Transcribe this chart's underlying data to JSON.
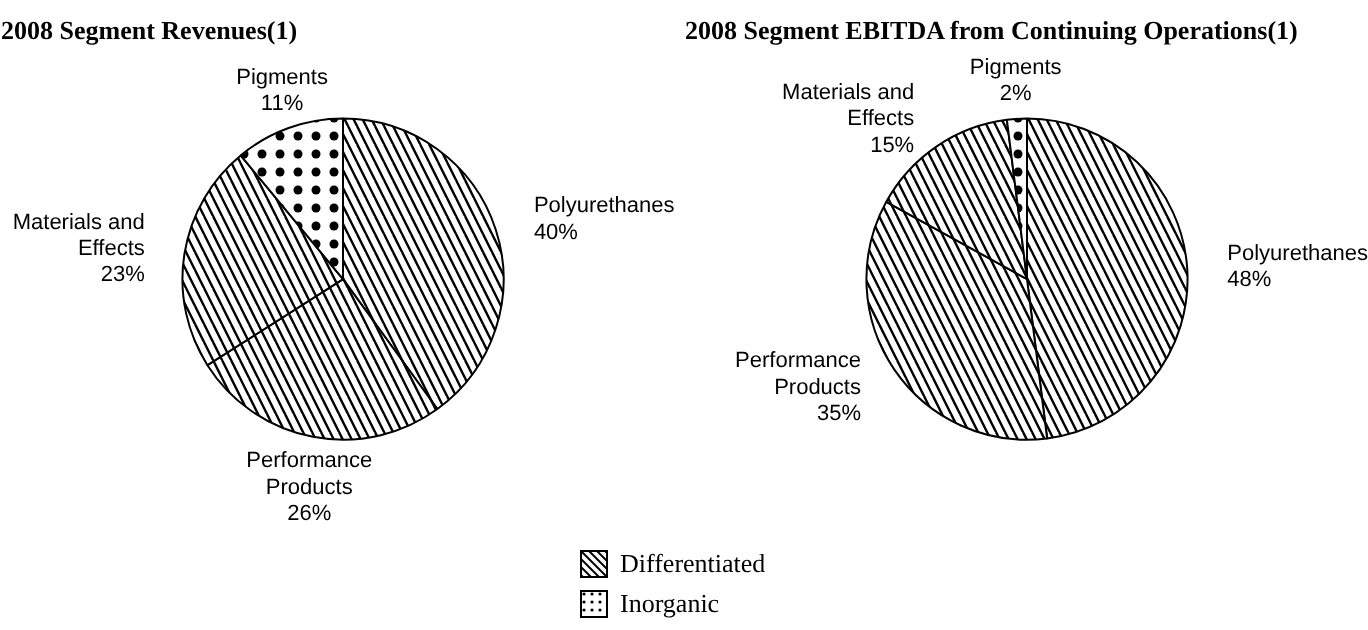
{
  "chart_data": [
    {
      "type": "pie",
      "title": "2008 Segment Revenues(1)",
      "categories": [
        "Polyurethanes",
        "Performance\nProducts",
        "Materials and\nEffects",
        "Pigments"
      ],
      "values": [
        40,
        26,
        23,
        11
      ],
      "colors": [
        "#ffffff",
        "#ffffff",
        "#ffffff",
        "#ffffff"
      ],
      "value_labels": [
        "40%",
        "26%",
        "23%",
        "11%"
      ]
    },
    {
      "type": "pie",
      "title": "2008 Segment EBITDA from Continuing Operations(1)",
      "categories": [
        "Polyurethanes",
        "Performance\nProducts",
        "Materials and\nEffects",
        "Pigments"
      ],
      "values": [
        48,
        35,
        15,
        2
      ],
      "colors": [
        "#ffffff",
        "#ffffff",
        "#ffffff",
        "#ffffff"
      ],
      "value_labels": [
        "48%",
        "35%",
        "15%",
        "2%"
      ]
    },
    {
      "type": "other",
      "annotations": [
        "Differentiated",
        "Inorganic"
      ]
    }
  ]
}
